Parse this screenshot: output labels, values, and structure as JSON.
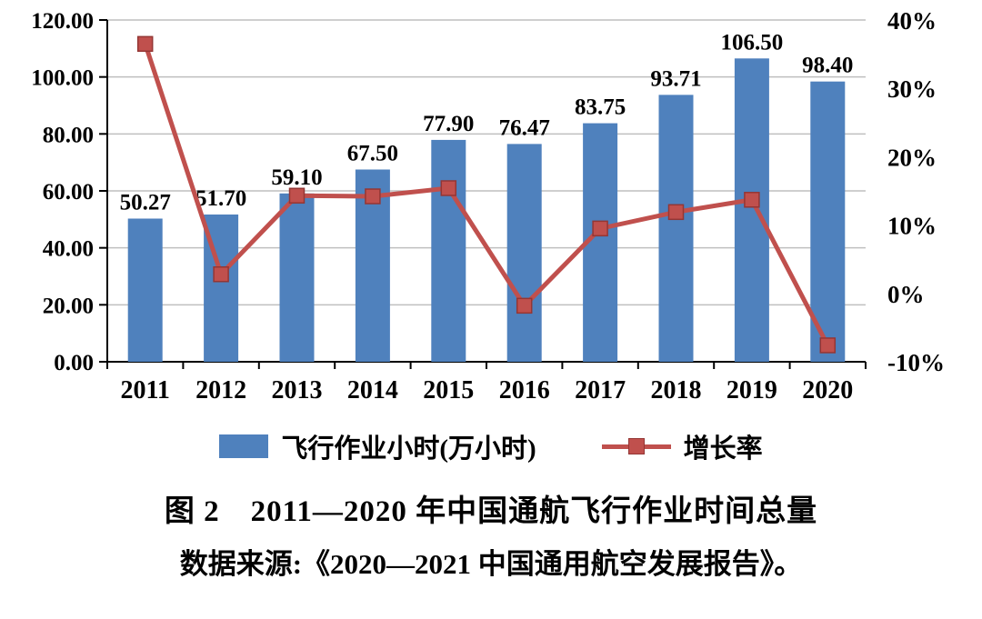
{
  "chart_data": {
    "type": "bar+line",
    "categories": [
      "2011",
      "2012",
      "2013",
      "2014",
      "2015",
      "2016",
      "2017",
      "2018",
      "2019",
      "2020"
    ],
    "series": [
      {
        "name": "飞行作业小时(万小时)",
        "type": "bar",
        "axis": "left",
        "color": "#4F81BD",
        "values": [
          50.27,
          51.7,
          59.1,
          67.5,
          77.9,
          76.47,
          83.75,
          93.71,
          106.5,
          98.4
        ],
        "labels": [
          "50.27",
          "51.70",
          "59.10",
          "67.50",
          "77.90",
          "76.47",
          "83.75",
          "93.71",
          "106.50",
          "98.40"
        ]
      },
      {
        "name": "增长率",
        "type": "line",
        "axis": "right",
        "color": "#C0504D",
        "marker_border": "#943634",
        "values": [
          36.5,
          2.8,
          14.3,
          14.2,
          15.4,
          -1.8,
          9.5,
          11.9,
          13.7,
          -7.6
        ]
      }
    ],
    "left_axis": {
      "min": 0,
      "max": 120,
      "step": 20,
      "tick_labels": [
        "0.00",
        "20.00",
        "40.00",
        "60.00",
        "80.00",
        "100.00",
        "120.00"
      ]
    },
    "right_axis": {
      "min": -10,
      "max": 40,
      "step": 10,
      "tick_labels": [
        "-10%",
        "0%",
        "10%",
        "20%",
        "30%",
        "40%"
      ]
    },
    "grid": true,
    "gridline_color": "#BFBFBF",
    "legend_position": "bottom",
    "title": "图 2  2011—2020 年中国通航飞行作业时间总量"
  },
  "caption": {
    "title": "图 2　2011—2020 年中国通航飞行作业时间总量",
    "source": "数据来源:《2020—2021 中国通用航空发展报告》。"
  }
}
